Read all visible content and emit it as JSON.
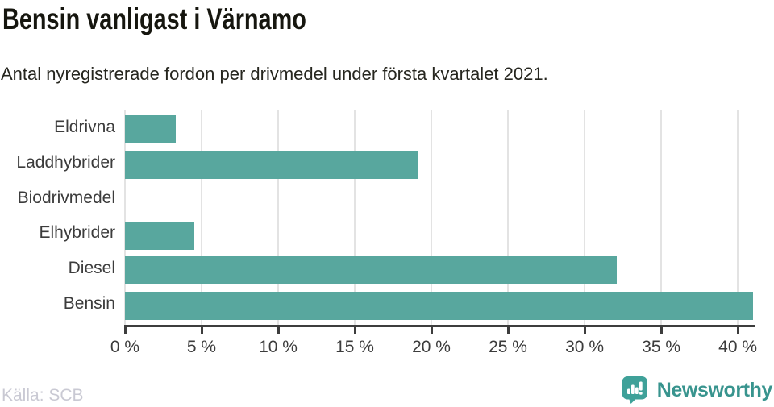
{
  "header": {
    "title": "Bensin vanligast i Värnamo",
    "subtitle": "Antal nyregistrerade fordon per drivmedel under första kvartalet 2021."
  },
  "footer": {
    "source": "Källa: SCB",
    "brand": "Newsworthy",
    "brand_icon": "newsworthy-bar-chart-speech-bubble"
  },
  "colors": {
    "bar": "#58a79e",
    "grid": "#e3e3e3",
    "axis": "#3d3d3d",
    "label_text": "#3c3c3c",
    "title_text": "#16160f",
    "subtitle_text": "#26261f",
    "source_text": "#c9c9d3",
    "brand_icon": "#3fa199",
    "brand_text": "#38948e"
  },
  "chart_data": {
    "type": "bar",
    "orientation": "horizontal",
    "title": "Bensin vanligast i Värnamo",
    "subtitle": "Antal nyregistrerade fordon per drivmedel under första kvartalet 2021.",
    "categories": [
      "Eldrivna",
      "Laddhybrider",
      "Biodrivmedel",
      "Elhybrider",
      "Diesel",
      "Bensin"
    ],
    "values": [
      3.3,
      19.1,
      0,
      4.5,
      32.1,
      41
    ],
    "unit": "%",
    "xlabel": "",
    "ylabel": "",
    "xlim": [
      0,
      41.1
    ],
    "ticks": [
      0,
      5,
      10,
      15,
      20,
      25,
      30,
      35,
      40
    ],
    "tick_labels": [
      "0 %",
      "5 %",
      "10 %",
      "15 %",
      "20 %",
      "25 %",
      "30 %",
      "35 %",
      "40 %"
    ],
    "grid": true,
    "legend_position": "none",
    "source": "SCB"
  }
}
